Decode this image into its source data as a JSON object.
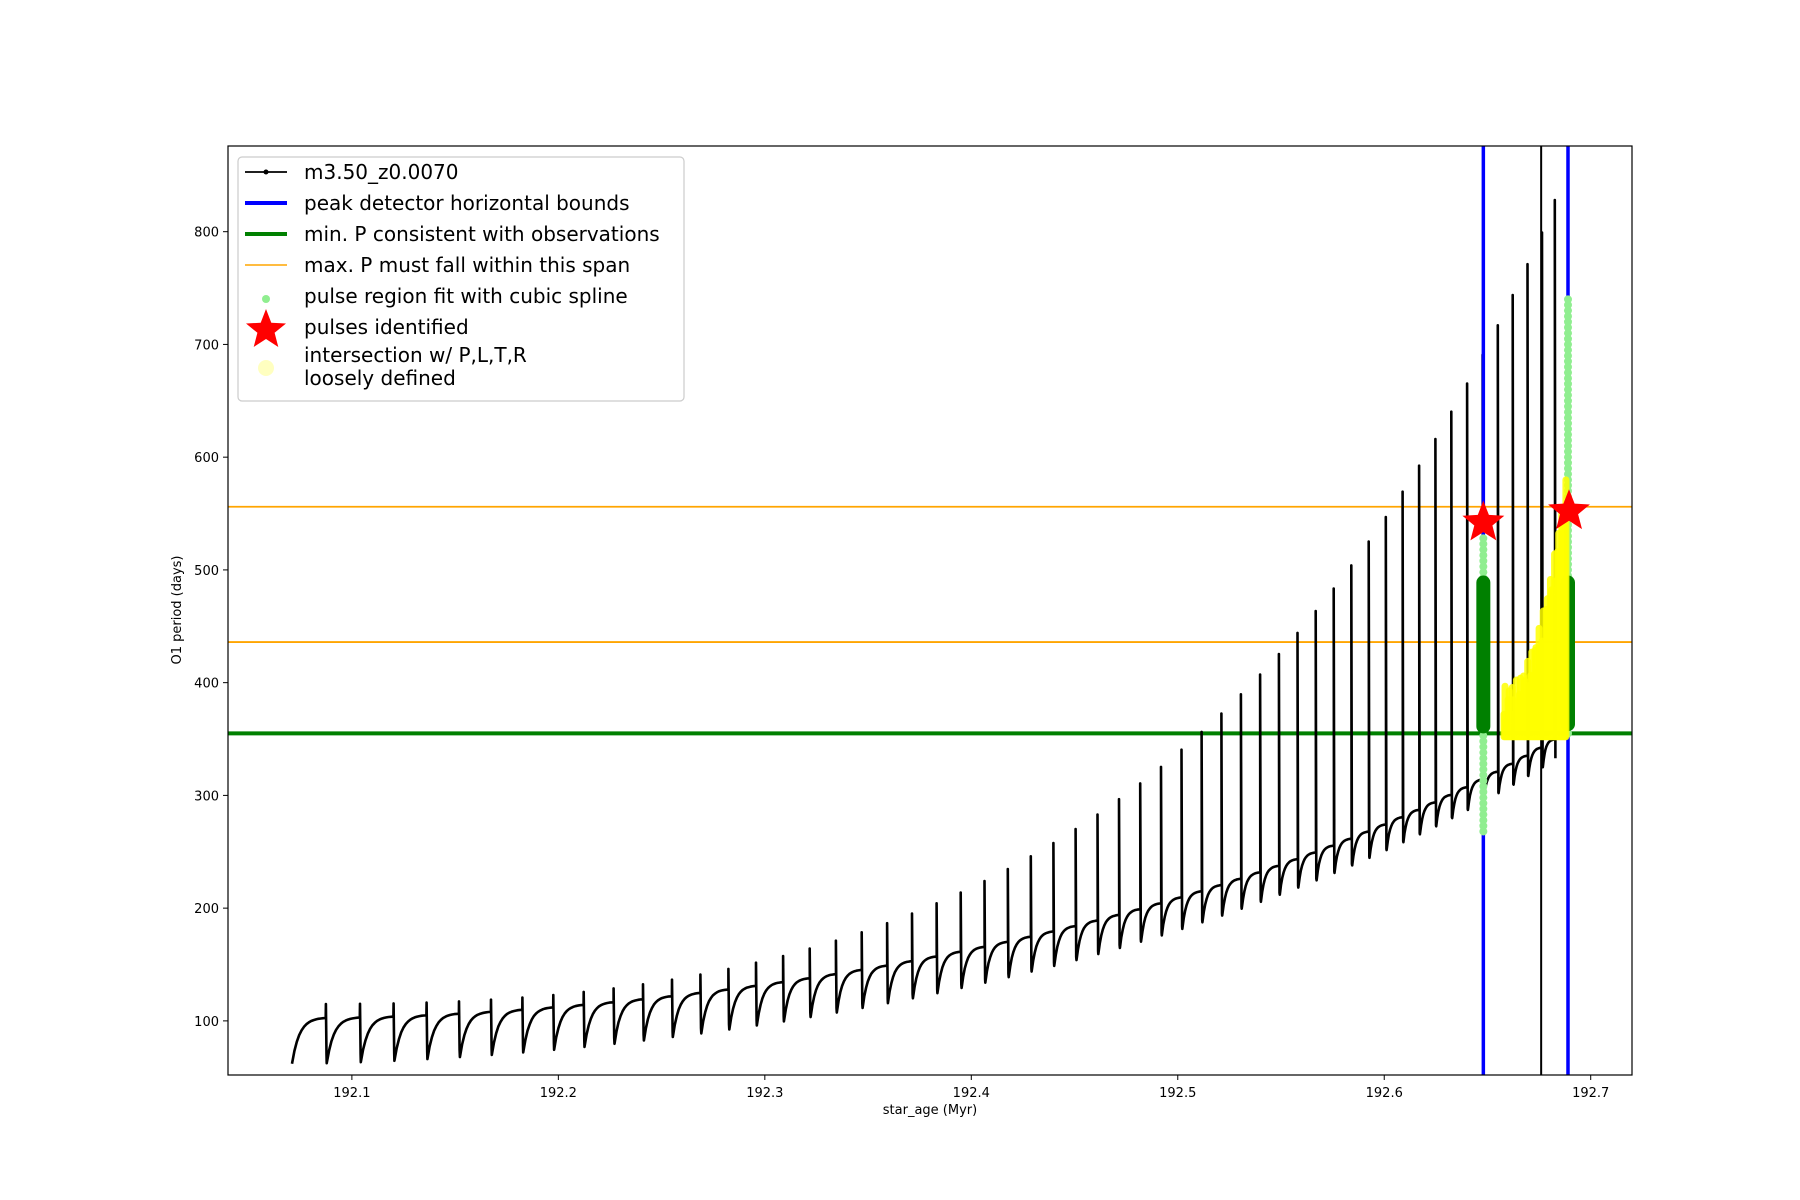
{
  "chart_data": {
    "type": "line",
    "xlabel": "star_age (Myr)",
    "ylabel": "O1 period (days)",
    "xlim": [
      192.04,
      192.72
    ],
    "ylim": [
      52,
      876
    ],
    "x_ticks": [
      192.1,
      192.2,
      192.3,
      192.4,
      192.5,
      192.6,
      192.7
    ],
    "x_tick_labels": [
      "192.1",
      "192.2",
      "192.3",
      "192.4",
      "192.5",
      "192.6",
      "192.7"
    ],
    "y_ticks": [
      100,
      200,
      300,
      400,
      500,
      600,
      700,
      800
    ],
    "y_tick_labels": [
      "100",
      "200",
      "300",
      "400",
      "500",
      "600",
      "700",
      "800"
    ],
    "legend": {
      "position": "upper-left",
      "entries": [
        {
          "key": "model",
          "label": "m3.50_z0.0070",
          "color": "#000000",
          "marker": "line-dot"
        },
        {
          "key": "bounds",
          "label": "peak detector horizontal bounds",
          "color": "#0000ff",
          "marker": "thick-line"
        },
        {
          "key": "minp",
          "label": "min. P consistent with observations",
          "color": "#008000",
          "marker": "thick-line"
        },
        {
          "key": "maxp",
          "label": "max. P must fall within this span",
          "color": "#ffa500",
          "marker": "thin-line"
        },
        {
          "key": "spline",
          "label": "pulse region fit with cubic spline",
          "color": "#90ee90",
          "marker": "dot"
        },
        {
          "key": "pulses",
          "label": "pulses identified",
          "color": "#ff0000",
          "marker": "star"
        },
        {
          "key": "intersection",
          "label": "intersection w/ P,L,T,R",
          "label_line2": "loosely defined",
          "color": "#ffffc0",
          "marker": "circle"
        }
      ]
    },
    "series": [
      {
        "name": "m3.50_z0.0070",
        "color": "#000000",
        "pulse_cycle": {
          "start_age": 192.071,
          "end_age": 192.683,
          "first_period": 0.0168,
          "last_period": 0.0068,
          "baseline_start_min": 62,
          "baseline_start_max": 103,
          "baseline_end_min": 325,
          "baseline_end_max": 350,
          "spike_start": 115,
          "spike_end": 828
        }
      }
    ],
    "vertical_lines": [
      {
        "x": 192.648,
        "color": "#0000ff",
        "label": "peak detector horizontal bounds"
      },
      {
        "x": 192.689,
        "color": "#0000ff",
        "label": "peak detector horizontal bounds"
      },
      {
        "x": 192.676,
        "color": "#000000",
        "label": "m3.50_z0.0070"
      }
    ],
    "horizontal_lines": [
      {
        "y": 355,
        "color": "#008000",
        "label": "min. P consistent with observations"
      },
      {
        "y": 556,
        "color": "#ffa500",
        "label": "max. P must fall within this span"
      },
      {
        "y": 436,
        "color": "#ffa500",
        "label": "max. P must fall within this span"
      }
    ],
    "spline_regions": [
      {
        "x": 192.648,
        "y_min": 268,
        "y_max": 530,
        "green_min": 355,
        "green_max": 495
      },
      {
        "x": 192.689,
        "y_min": 355,
        "y_max": 740,
        "green_min": 357,
        "green_max": 495
      }
    ],
    "pulses_identified": [
      {
        "x": 192.648,
        "y": 542
      },
      {
        "x": 192.6895,
        "y": 552
      }
    ],
    "intersection_region": {
      "x_start": 192.658,
      "x_end": 192.688,
      "y_min": 352,
      "y_max": 555
    }
  }
}
